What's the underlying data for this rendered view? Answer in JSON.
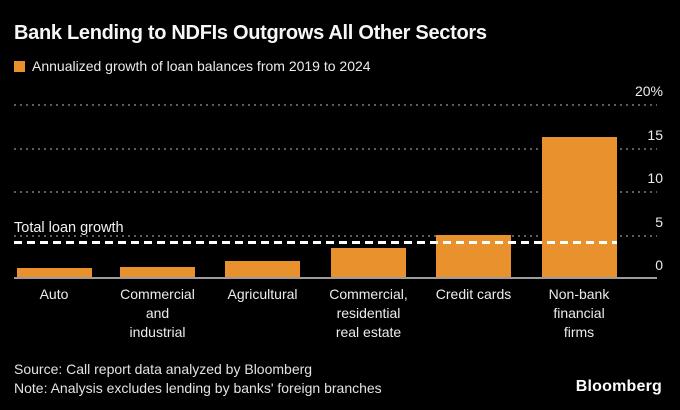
{
  "header": {
    "title": "Bank Lending to NDFIs Outgrows All Other Sectors",
    "legend_label": "Annualized growth of loan balances from 2019 to 2024"
  },
  "colors": {
    "background": "#000000",
    "bar_orange": "#E8912D",
    "grid_gray": "#5d5d5d",
    "axis_gray": "#9c9c9c",
    "text_white": "#ececec",
    "reference_white": "#ffffff"
  },
  "chart_data": {
    "type": "bar",
    "title": "Bank Lending to NDFIs Outgrows All Other Sectors",
    "series_name": "Annualized growth of loan balances from 2019 to 2024",
    "categories": [
      "Auto",
      "Commercial\nand\nindustrial",
      "Agricultural",
      "Commercial,\nresidential\nreal estate",
      "Credit cards",
      "Non-bank\nfinancial\nfirms"
    ],
    "values": [
      1.2,
      1.3,
      2.0,
      3.5,
      4.9,
      16.2
    ],
    "unit": "%",
    "bar_color": "#E8912D",
    "xlabel": "",
    "ylabel": "",
    "ylim": [
      0,
      20
    ],
    "yticks": [
      0,
      5,
      10,
      15,
      20
    ],
    "ytick_labels": [
      "0",
      "5",
      "10",
      "15",
      "20%"
    ],
    "grid": "horizontal-dotted",
    "legend_position": "top-left",
    "reference_line": {
      "label": "Total loan growth",
      "value": 4.1,
      "style": "dashed-white"
    }
  },
  "footer": {
    "source": "Source: Call report data analyzed by Bloomberg",
    "note": "Note: Analysis excludes lending by banks' foreign branches",
    "logo": "Bloomberg"
  }
}
